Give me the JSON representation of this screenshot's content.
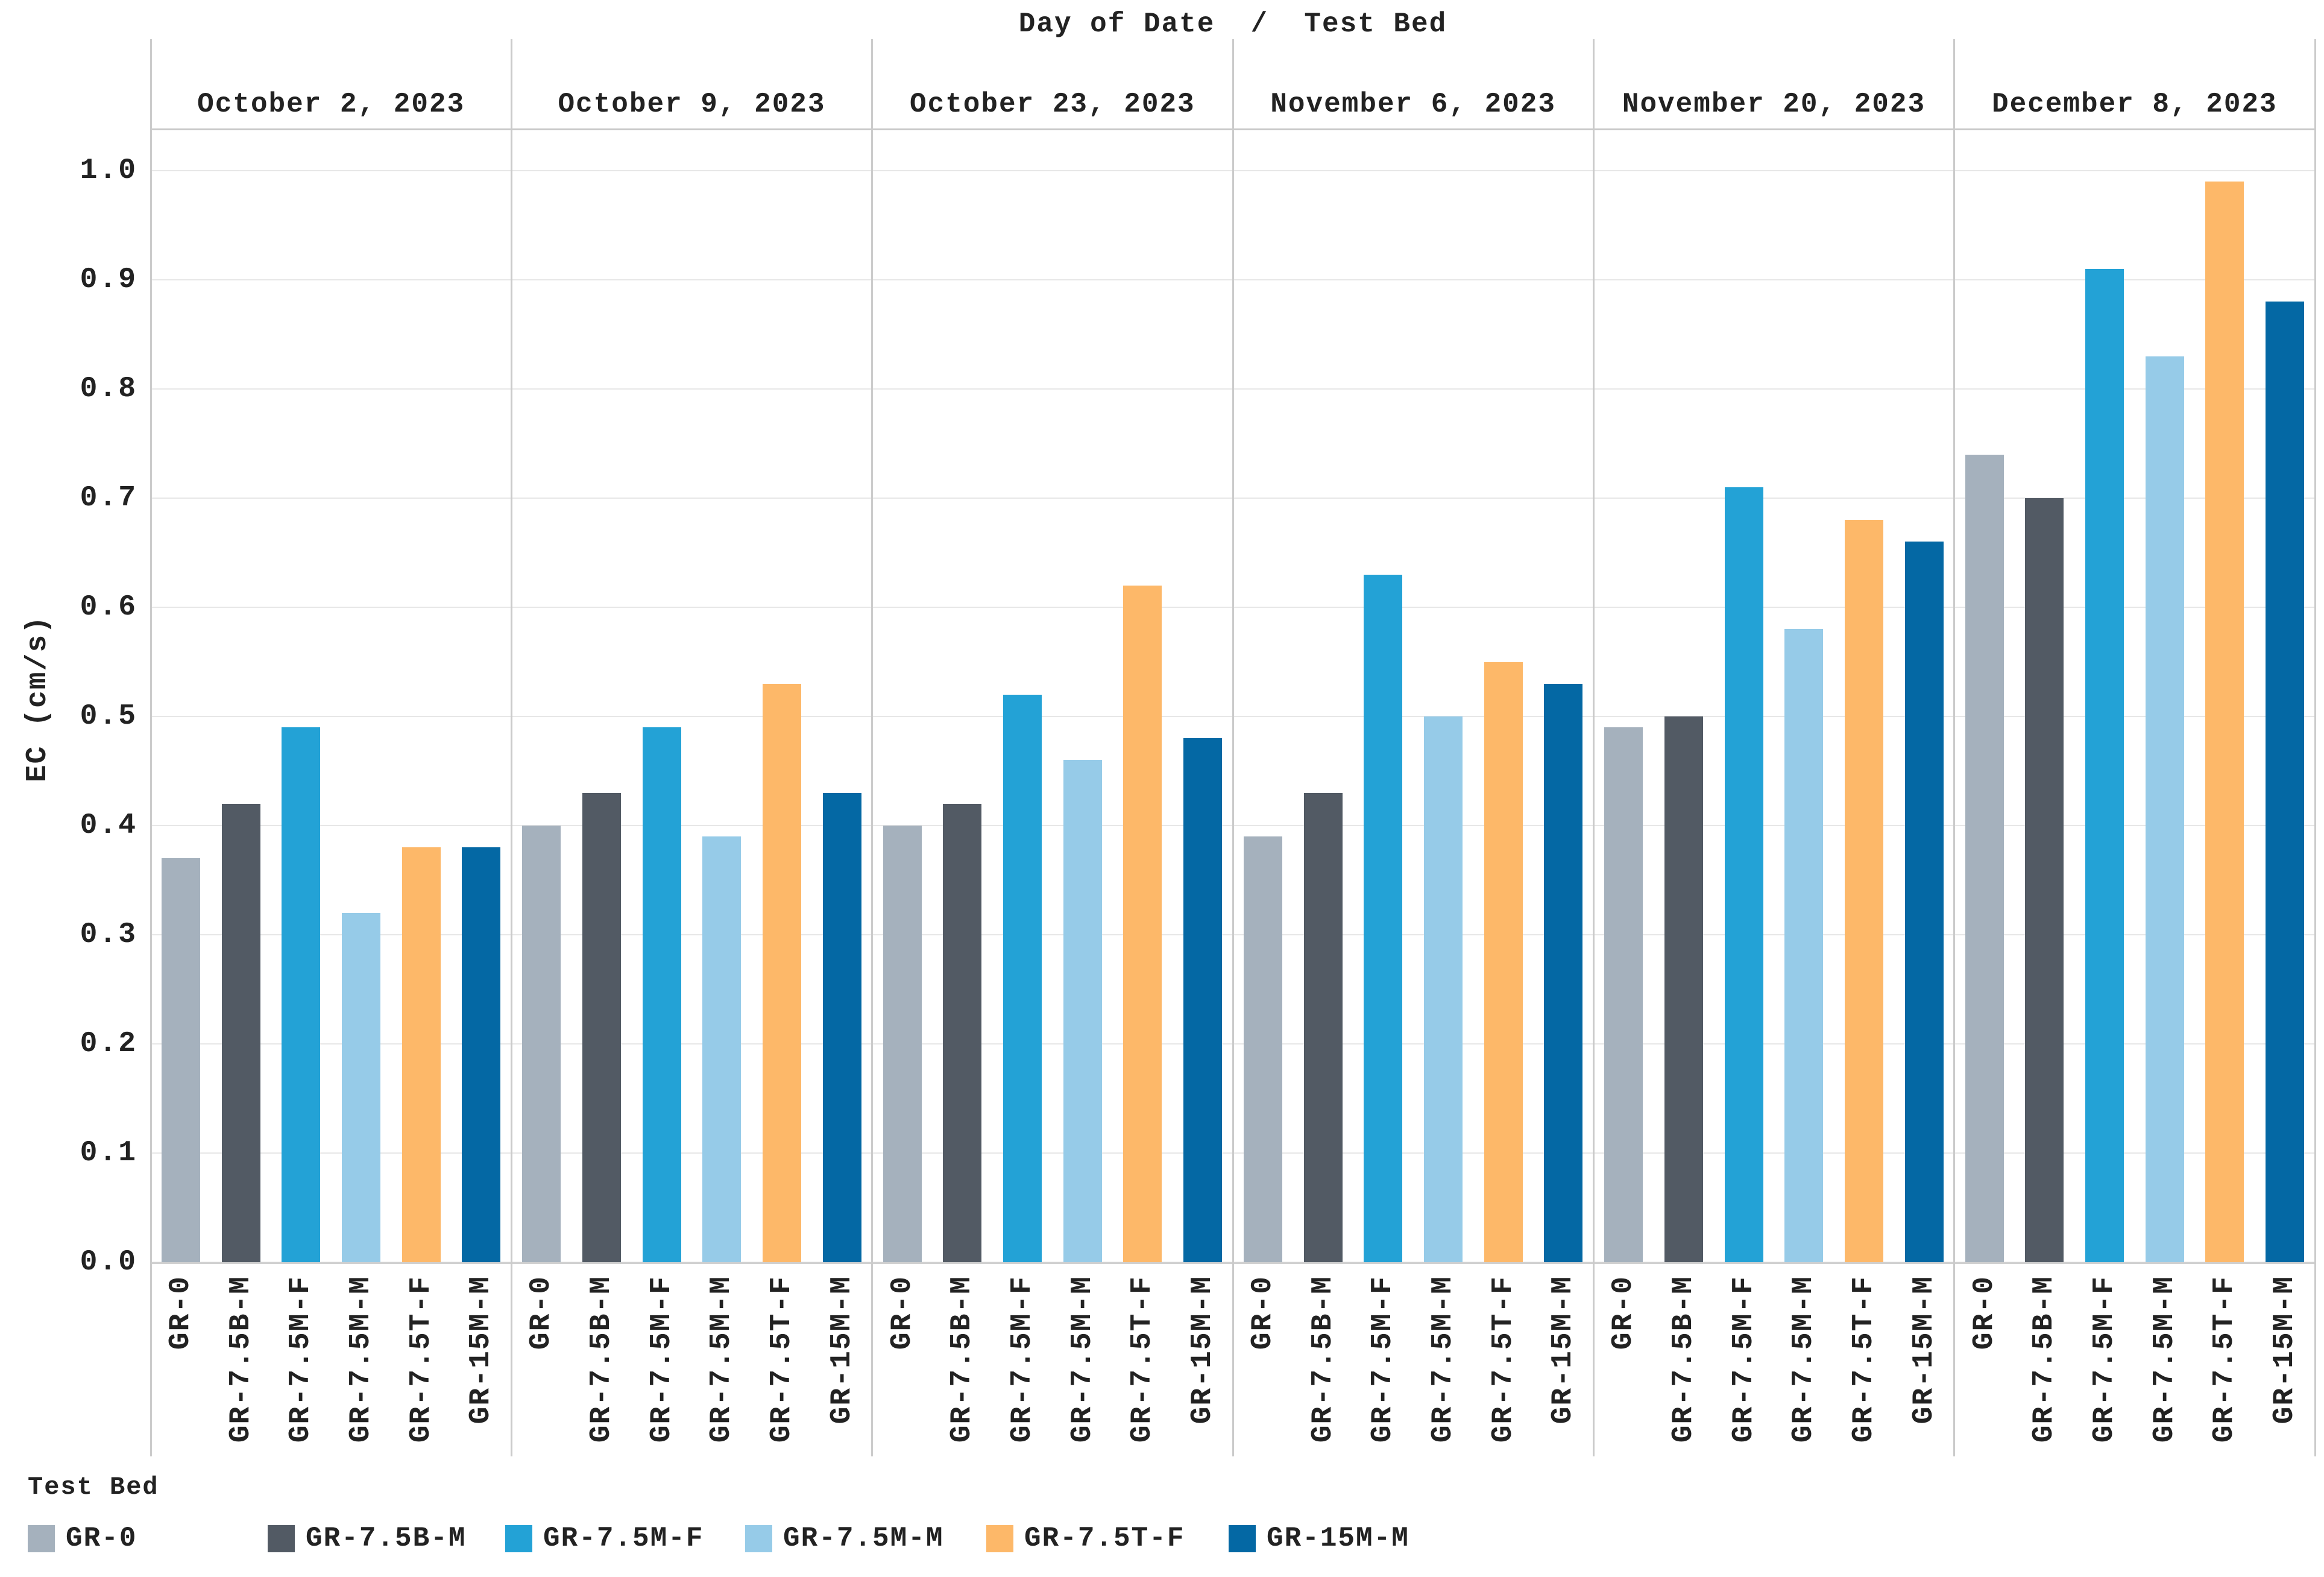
{
  "header": {
    "title_display": "Day of Date  /  Test Bed"
  },
  "legend": {
    "title": "Test Bed"
  },
  "style": {
    "grid_color": "#e7e7e7",
    "axis_color": "#d0d0d0",
    "divider_color": "#cbcbcb",
    "text_color": "#222222",
    "background": "#ffffff"
  },
  "chart_data": {
    "type": "bar",
    "title": "Day of Date / Test Bed",
    "xlabel": "",
    "ylabel": "EC (cm/s)",
    "ylim": [
      0.0,
      1.0
    ],
    "yticks": [
      0.0,
      0.1,
      0.2,
      0.3,
      0.4,
      0.5,
      0.6,
      0.7,
      0.8,
      0.9,
      1.0
    ],
    "grid": true,
    "legend_position": "bottom",
    "categories": [
      "October 2, 2023",
      "October 9, 2023",
      "October 23, 2023",
      "November 6, 2023",
      "November 20, 2023",
      "December 8, 2023"
    ],
    "series": [
      {
        "name": "GR-0",
        "color": "#a5b1bd",
        "values": [
          0.37,
          0.4,
          0.4,
          0.39,
          0.49,
          0.74
        ]
      },
      {
        "name": "GR-7.5B-M",
        "color": "#525a64",
        "values": [
          0.42,
          0.43,
          0.42,
          0.43,
          0.5,
          0.7
        ]
      },
      {
        "name": "GR-7.5M-F",
        "color": "#23a2d6",
        "values": [
          0.49,
          0.49,
          0.52,
          0.63,
          0.71,
          0.91
        ]
      },
      {
        "name": "GR-7.5M-M",
        "color": "#96cbe8",
        "values": [
          0.32,
          0.39,
          0.46,
          0.5,
          0.58,
          0.83
        ]
      },
      {
        "name": "GR-7.5T-F",
        "color": "#fdb869",
        "values": [
          0.38,
          0.53,
          0.62,
          0.55,
          0.68,
          0.99
        ]
      },
      {
        "name": "GR-15M-M",
        "color": "#0468a4",
        "values": [
          0.38,
          0.43,
          0.48,
          0.53,
          0.66,
          0.88
        ]
      }
    ]
  }
}
